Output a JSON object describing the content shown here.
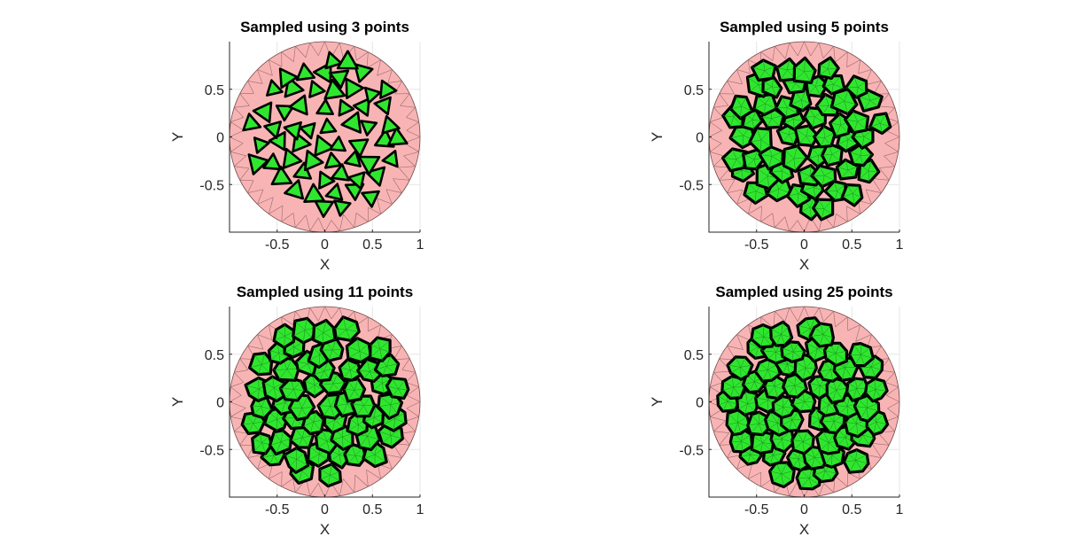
{
  "chart_data": [
    {
      "type": "scatter",
      "title": "Sampled using 3 points",
      "xlabel": "X",
      "ylabel": "Y",
      "xlim": [
        -1,
        1
      ],
      "ylim": [
        -1,
        1
      ],
      "xticks": [
        "-0.5",
        "0",
        "0.5",
        "1"
      ],
      "yticks": [
        "0.5",
        "0",
        "-0.5"
      ],
      "xtick_values": [
        -0.5,
        0,
        0.5,
        1
      ],
      "ytick_values": [
        0.5,
        0,
        -0.5
      ],
      "grid": true,
      "sample_points": 3,
      "region": "unit disk",
      "colors": {
        "disk": "#f8b4b4",
        "cells": "#2fe62f",
        "edges": "#000000"
      }
    },
    {
      "type": "scatter",
      "title": "Sampled using 5 points",
      "xlabel": "X",
      "ylabel": "Y",
      "xlim": [
        -1,
        1
      ],
      "ylim": [
        -1,
        1
      ],
      "xticks": [
        "-0.5",
        "0",
        "0.5",
        "1"
      ],
      "yticks": [
        "0.5",
        "0",
        "-0.5"
      ],
      "xtick_values": [
        -0.5,
        0,
        0.5,
        1
      ],
      "ytick_values": [
        0.5,
        0,
        -0.5
      ],
      "grid": true,
      "sample_points": 5,
      "region": "unit disk",
      "colors": {
        "disk": "#f8b4b4",
        "cells": "#2fe62f",
        "edges": "#000000"
      }
    },
    {
      "type": "scatter",
      "title": "Sampled using 11 points",
      "xlabel": "X",
      "ylabel": "Y",
      "xlim": [
        -1,
        1
      ],
      "ylim": [
        -1,
        1
      ],
      "xticks": [
        "-0.5",
        "0",
        "0.5",
        "1"
      ],
      "yticks": [
        "0.5",
        "0",
        "-0.5"
      ],
      "xtick_values": [
        -0.5,
        0,
        0.5,
        1
      ],
      "ytick_values": [
        0.5,
        0,
        -0.5
      ],
      "grid": true,
      "sample_points": 11,
      "region": "unit disk",
      "colors": {
        "disk": "#f8b4b4",
        "cells": "#2fe62f",
        "edges": "#000000"
      }
    },
    {
      "type": "scatter",
      "title": "Sampled using 25 points",
      "xlabel": "X",
      "ylabel": "Y",
      "xlim": [
        -1,
        1
      ],
      "ylim": [
        -1,
        1
      ],
      "xticks": [
        "-0.5",
        "0",
        "0.5",
        "1"
      ],
      "yticks": [
        "0.5",
        "0",
        "-0.5"
      ],
      "xtick_values": [
        -0.5,
        0,
        0.5,
        1
      ],
      "ytick_values": [
        0.5,
        0,
        -0.5
      ],
      "grid": true,
      "sample_points": 25,
      "region": "unit disk",
      "colors": {
        "disk": "#f8b4b4",
        "cells": "#2fe62f",
        "edges": "#000000"
      }
    }
  ]
}
